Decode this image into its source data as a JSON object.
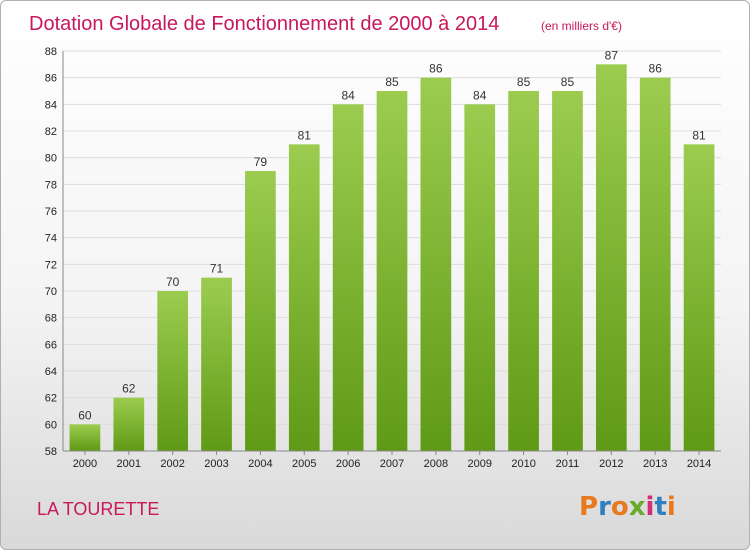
{
  "chart_data": {
    "type": "bar",
    "title": "Dotation Globale de Fonctionnement de 2000 à 2014",
    "subtitle": "(en milliers d'€)",
    "categories": [
      "2000",
      "2001",
      "2002",
      "2003",
      "2004",
      "2005",
      "2006",
      "2007",
      "2008",
      "2009",
      "2010",
      "2011",
      "2012",
      "2013",
      "2014"
    ],
    "values": [
      60,
      62,
      70,
      71,
      79,
      81,
      84,
      85,
      86,
      84,
      85,
      85,
      87,
      86,
      81
    ],
    "ylim": [
      58,
      88
    ],
    "yticks": [
      58,
      60,
      62,
      64,
      66,
      68,
      70,
      72,
      74,
      76,
      78,
      80,
      82,
      84,
      86,
      88
    ],
    "grid": true,
    "bar_color_top": "#9ccc4f",
    "bar_color_bottom": "#5f9a16"
  },
  "commune": "LA TOURETTE",
  "logo": {
    "text": "Proxiti",
    "colors": [
      "#e8791d",
      "#2f7fc1",
      "#e8791d",
      "#6aaa2a",
      "#d12d7a",
      "#2f7fc1",
      "#e8791d"
    ]
  }
}
